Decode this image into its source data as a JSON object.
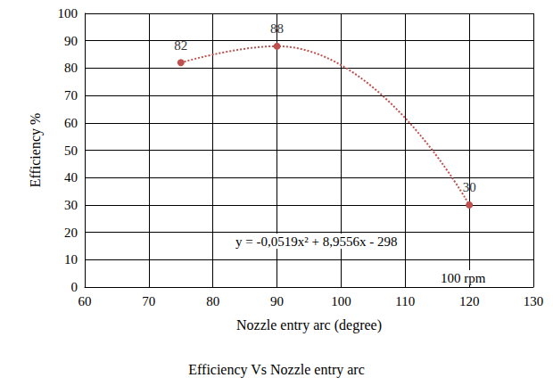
{
  "chart_data": {
    "type": "line",
    "title": "Efficiency Vs Nozzle entry arc",
    "x_label": "Nozzle entry arc (degree)",
    "y_label": "Efficiency %",
    "annotations": [
      "y = -0,0519x² + 8,9556x - 298",
      "100 rpm"
    ],
    "x": [
      75,
      90,
      120
    ],
    "values": [
      82,
      88,
      30
    ],
    "color": "#c0504d",
    "marker": "circle",
    "line_style": "dotted",
    "data_labels": true,
    "grid": true,
    "xlim": [
      60,
      130
    ],
    "xticks": [
      60,
      70,
      80,
      90,
      100,
      110,
      120,
      130
    ],
    "ylim": [
      0,
      100
    ],
    "yticks": [
      0,
      10,
      20,
      30,
      40,
      50,
      60,
      70,
      80,
      90,
      100
    ]
  }
}
